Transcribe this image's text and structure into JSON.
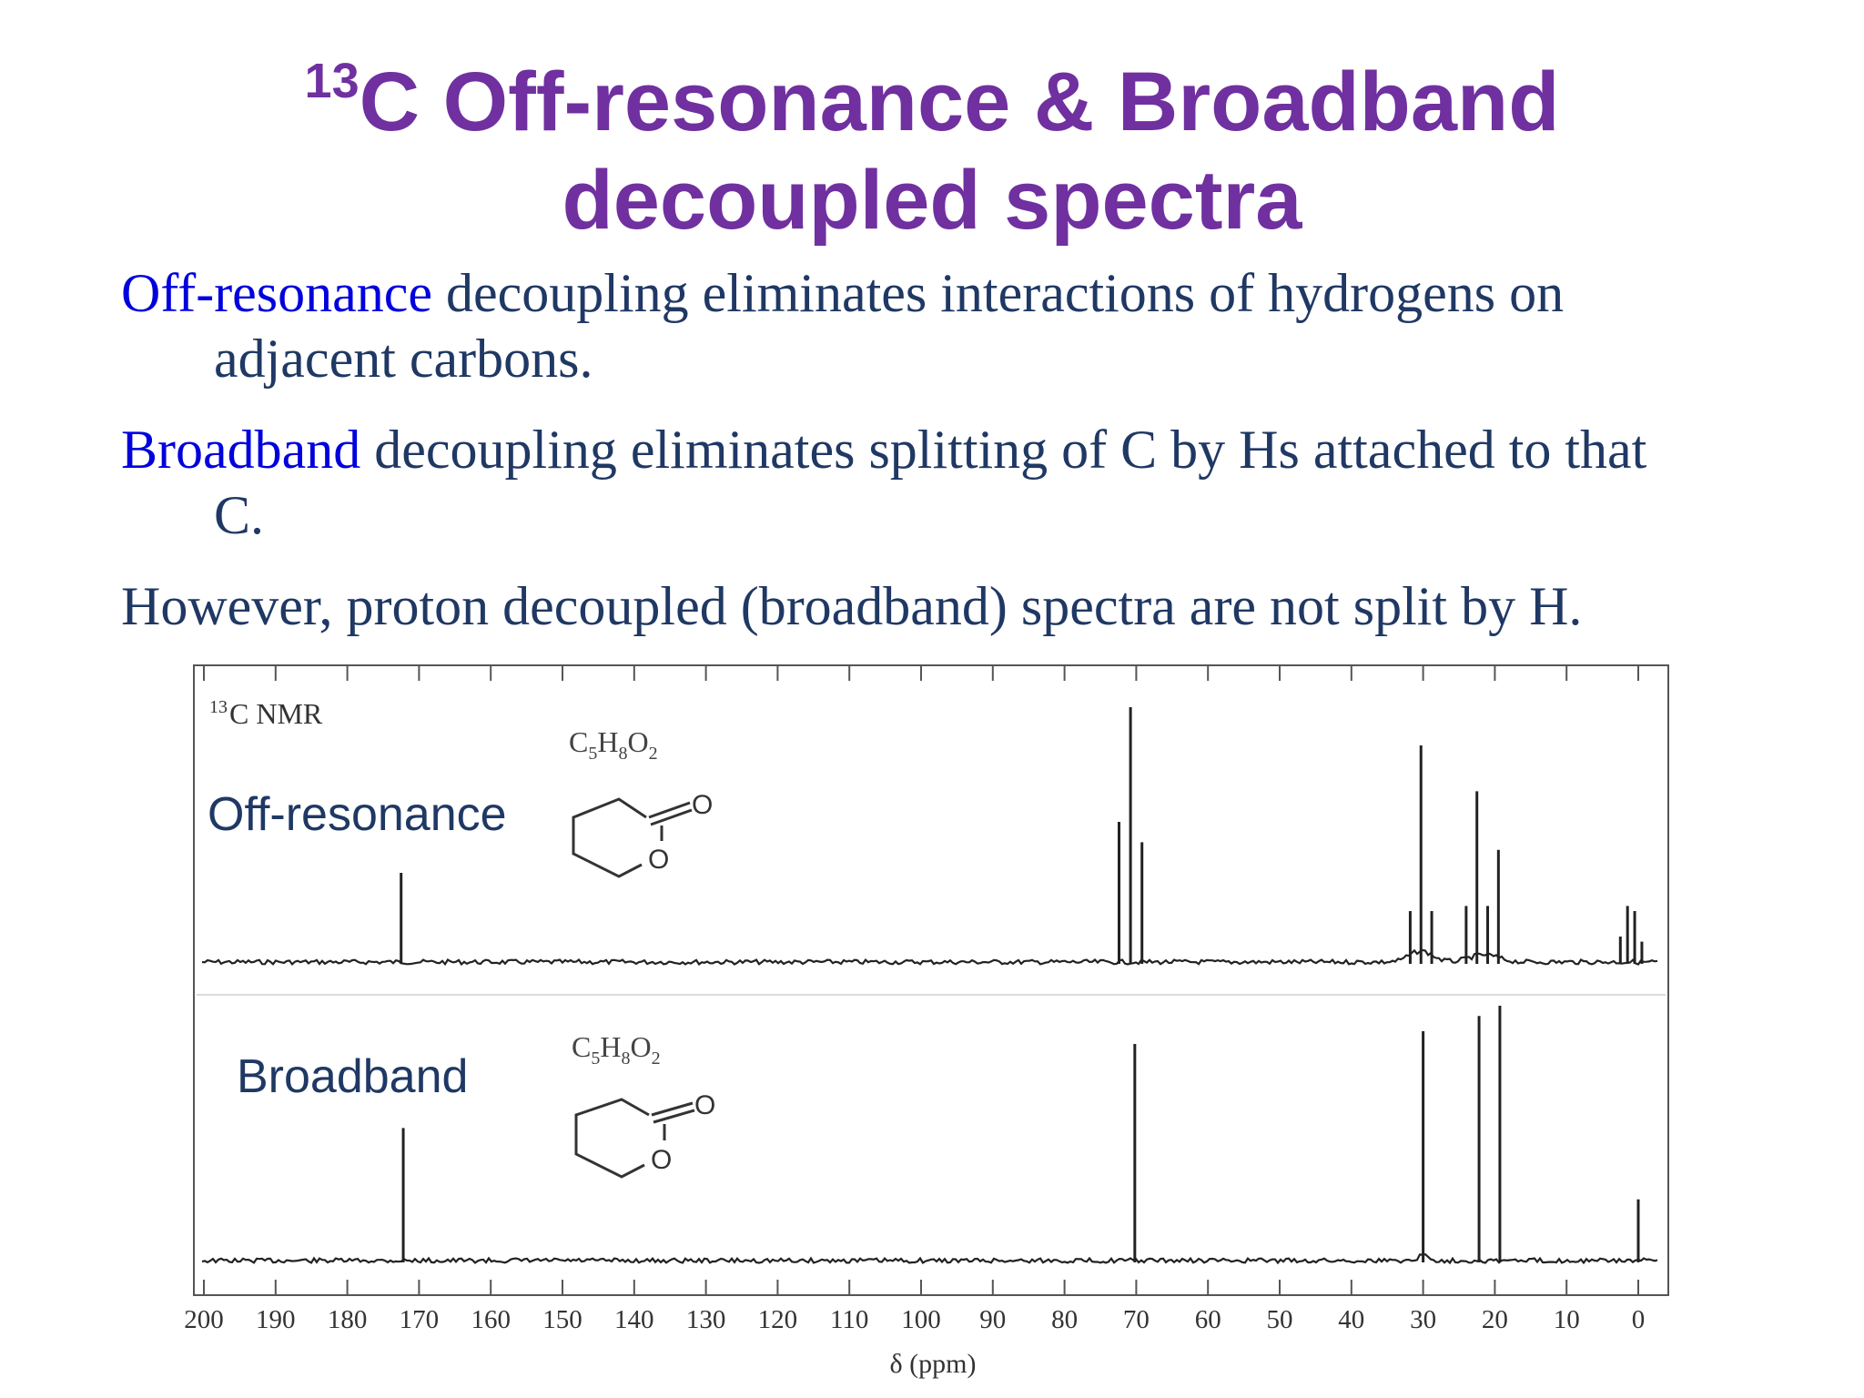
{
  "slide": {
    "title_sup": "13",
    "title_line1": "C Off-resonance & Broadband",
    "title_line2": "decoupled spectra",
    "p1_hl": "Off-resonance",
    "p1_rest": " decoupling eliminates interactions of hydrogens on",
    "p1_cont": "adjacent carbons.",
    "p2_hl": "Broadband",
    "p2_rest": " decoupling eliminates splitting of C by Hs attached to that",
    "p2_cont": "C.",
    "p3": "However, proton decoupled (broadband) spectra are not split by H."
  },
  "colors": {
    "title": "#7030A0",
    "body_text": "#1F3864",
    "highlight": "#0000DD",
    "spectrum": "#222222"
  },
  "chart_data": {
    "type": "line",
    "nmr_label_sup": "13",
    "nmr_label": "C NMR",
    "formula_main1": "C",
    "formula_sub1": "5",
    "formula_main2": "H",
    "formula_sub2": "8",
    "formula_main3": "O",
    "formula_sub3": "2",
    "ring_atom_label": "O",
    "xlabel": "δ (ppm)",
    "xlim": [
      200,
      0
    ],
    "x_ticks": [
      200,
      190,
      180,
      170,
      160,
      150,
      140,
      130,
      120,
      110,
      100,
      90,
      80,
      70,
      60,
      50,
      40,
      30,
      20,
      10,
      0
    ],
    "series": [
      {
        "name": "Off-resonance",
        "peaks": [
          {
            "ppm": 172.5,
            "height": 0.35
          },
          {
            "ppm": 72.4,
            "height": 0.55
          },
          {
            "ppm": 70.8,
            "height": 1.0
          },
          {
            "ppm": 69.2,
            "height": 0.47
          },
          {
            "ppm": 31.8,
            "height": 0.2
          },
          {
            "ppm": 30.3,
            "height": 0.85
          },
          {
            "ppm": 28.8,
            "height": 0.2
          },
          {
            "ppm": 24.0,
            "height": 0.22
          },
          {
            "ppm": 22.5,
            "height": 0.67
          },
          {
            "ppm": 21.0,
            "height": 0.22
          },
          {
            "ppm": 19.5,
            "height": 0.44
          },
          {
            "ppm": 2.5,
            "height": 0.1
          },
          {
            "ppm": 1.5,
            "height": 0.22
          },
          {
            "ppm": 0.5,
            "height": 0.2
          },
          {
            "ppm": -0.5,
            "height": 0.08
          }
        ]
      },
      {
        "name": "Broadband",
        "peaks": [
          {
            "ppm": 172.2,
            "height": 0.52
          },
          {
            "ppm": 70.2,
            "height": 0.85
          },
          {
            "ppm": 30.0,
            "height": 0.9
          },
          {
            "ppm": 22.2,
            "height": 0.96
          },
          {
            "ppm": 19.3,
            "height": 1.0
          },
          {
            "ppm": 0.0,
            "height": 0.24
          }
        ]
      }
    ]
  }
}
